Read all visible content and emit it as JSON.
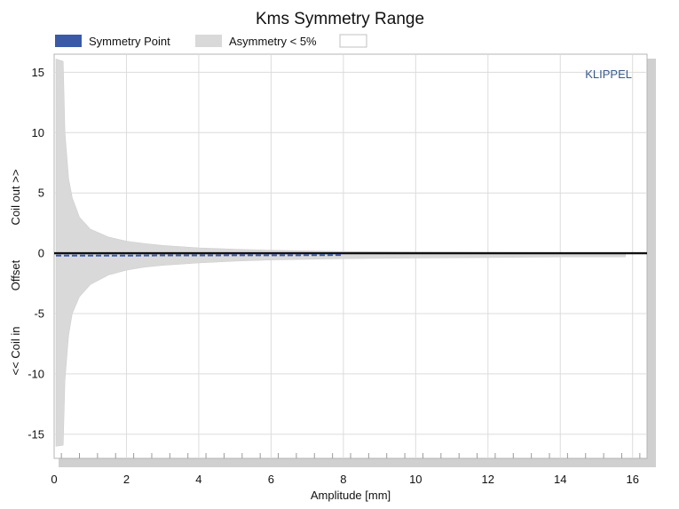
{
  "chart_data": {
    "type": "area",
    "title": "Kms Symmetry Range",
    "xlabel": "Amplitude [mm]",
    "ylabel_parts": [
      "<< Coil in",
      "Offset",
      "Coil out >>"
    ],
    "watermark": "KLIPPEL",
    "xlim": [
      0,
      16.4
    ],
    "ylim": [
      -17,
      16.5
    ],
    "x_ticks": [
      0,
      2,
      4,
      6,
      8,
      10,
      12,
      14,
      16
    ],
    "y_ticks": [
      -15,
      -10,
      -5,
      0,
      5,
      10,
      15
    ],
    "grid": true,
    "legend": {
      "placement": "top",
      "entries": [
        {
          "label": "Symmetry Point",
          "color": "#3a5aa8"
        },
        {
          "label": "Asymmetry < 5%",
          "color": "#d9d9d9"
        },
        {
          "label": "",
          "color": "#ffffff"
        }
      ]
    },
    "series": [
      {
        "name": "Asymmetry < 5%",
        "kind": "band",
        "color": "#d9d9d9",
        "x": [
          0.05,
          0.25,
          0.3,
          0.4,
          0.5,
          0.7,
          1.0,
          1.5,
          2.0,
          2.5,
          3.0,
          4.0,
          5.0,
          6.0,
          8.0,
          10.0,
          12.0,
          14.0,
          15.8
        ],
        "upper": [
          16.1,
          15.9,
          10.0,
          6.2,
          4.6,
          3.0,
          2.0,
          1.35,
          1.0,
          0.8,
          0.65,
          0.45,
          0.33,
          0.25,
          0.15,
          0.1,
          0.08,
          0.06,
          0.05
        ],
        "lower": [
          -16.0,
          -15.9,
          -10.5,
          -6.8,
          -5.0,
          -3.6,
          -2.6,
          -1.8,
          -1.4,
          -1.15,
          -1.0,
          -0.8,
          -0.65,
          -0.55,
          -0.45,
          -0.4,
          -0.35,
          -0.3,
          -0.3
        ]
      },
      {
        "name": "Symmetry Point",
        "kind": "line",
        "color": "#3a5aa8",
        "x": [
          0.05,
          1,
          2,
          3,
          4,
          5,
          6,
          7,
          8
        ],
        "y": [
          -0.2,
          -0.2,
          -0.2,
          -0.18,
          -0.18,
          -0.17,
          -0.17,
          -0.16,
          -0.15
        ]
      }
    ]
  }
}
